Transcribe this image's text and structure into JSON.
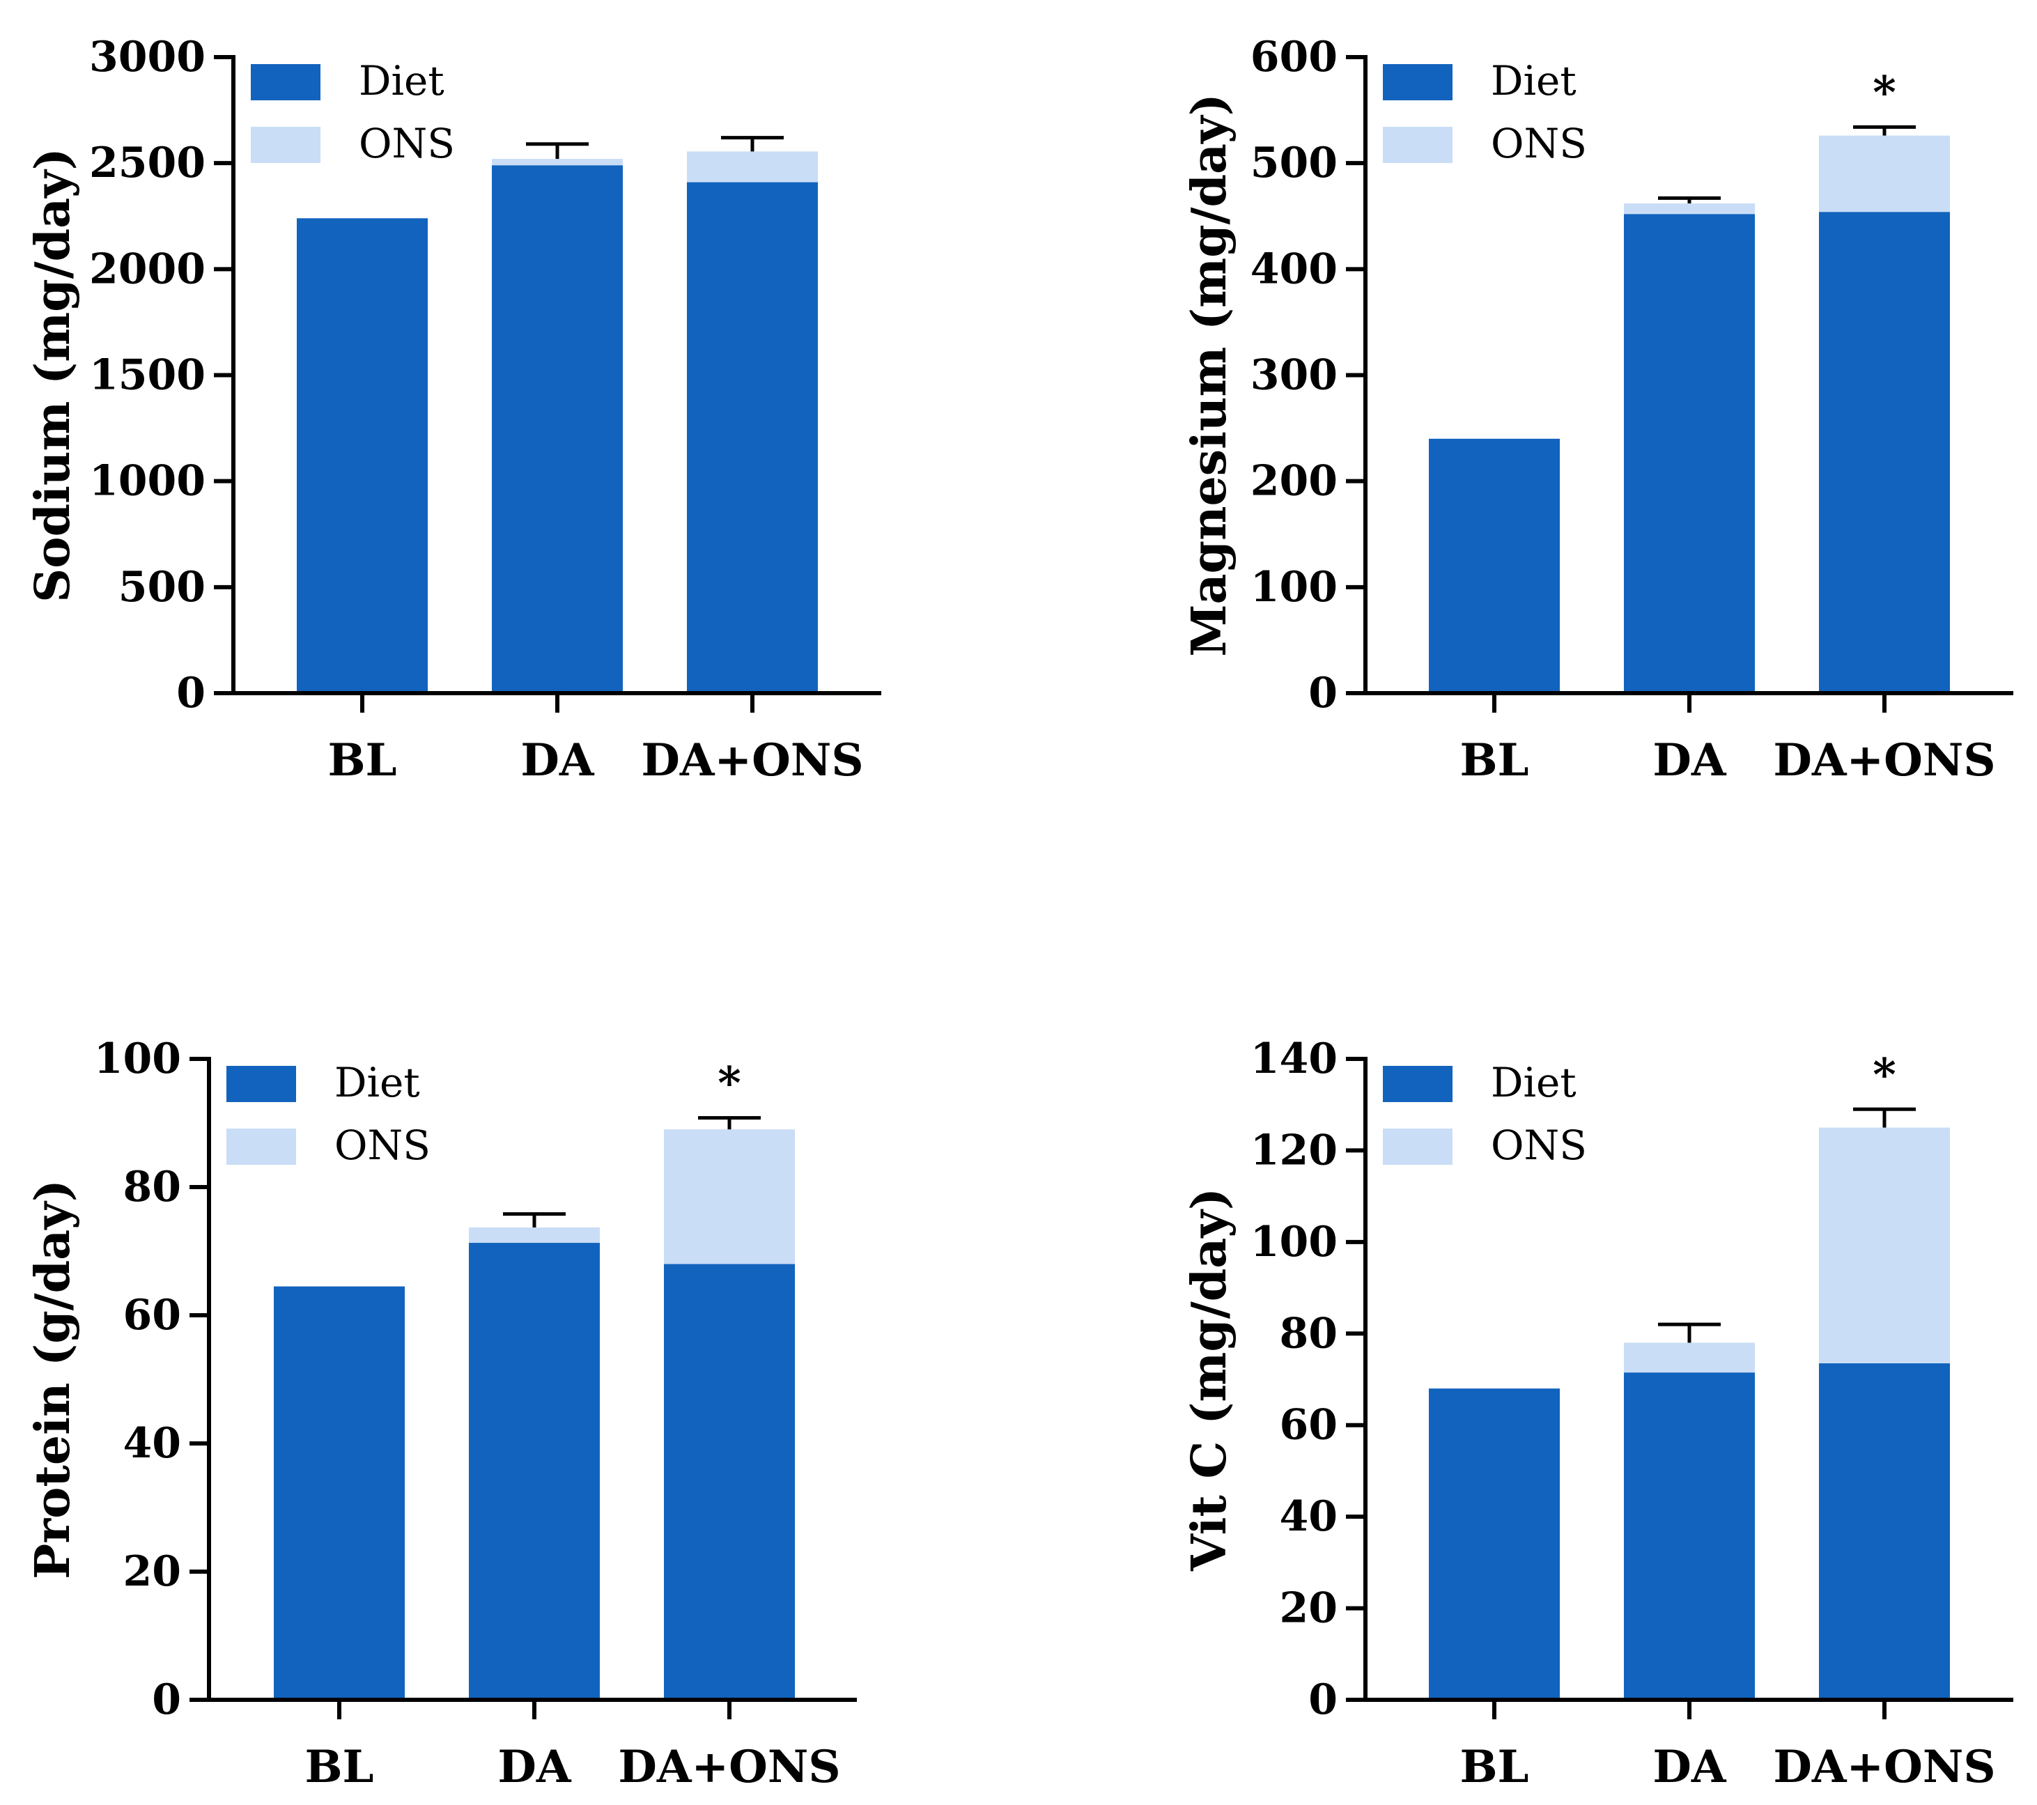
{
  "figure": {
    "colors": {
      "diet": "#1263bd",
      "ons": "#c9ddf6",
      "axis": "#000000"
    },
    "legend": [
      "Diet",
      "ONS"
    ]
  },
  "chart_data": [
    {
      "id": "sodium",
      "type": "bar",
      "stacked": true,
      "categories": [
        "BL",
        "DA",
        "DA+ONS"
      ],
      "series": [
        {
          "name": "Diet",
          "values": [
            2240,
            2490,
            2410
          ]
        },
        {
          "name": "ONS",
          "values": [
            0,
            30,
            145
          ]
        }
      ],
      "error_bar_tops": [
        null,
        2590,
        2620
      ],
      "significance": [
        "",
        "",
        ""
      ],
      "ylabel": "Sodium (mg/day)",
      "ylim": [
        0,
        3000
      ],
      "yticks": [
        0,
        500,
        1000,
        1500,
        2000,
        2500,
        3000
      ],
      "legend": "top-left"
    },
    {
      "id": "magnesium",
      "type": "bar",
      "stacked": true,
      "categories": [
        "BL",
        "DA",
        "DA+ONS"
      ],
      "series": [
        {
          "name": "Diet",
          "values": [
            240,
            452,
            454
          ]
        },
        {
          "name": "ONS",
          "values": [
            0,
            10,
            72
          ]
        }
      ],
      "error_bar_tops": [
        null,
        467,
        534
      ],
      "significance": [
        "",
        "",
        "*"
      ],
      "ylabel": "Magnesium (mg/day)",
      "ylim": [
        0,
        600
      ],
      "yticks": [
        0,
        100,
        200,
        300,
        400,
        500,
        600
      ],
      "legend": "top-left"
    },
    {
      "id": "protein",
      "type": "bar",
      "stacked": true,
      "categories": [
        "BL",
        "DA",
        "DA+ONS"
      ],
      "series": [
        {
          "name": "Diet",
          "values": [
            64.5,
            71.3,
            68
          ]
        },
        {
          "name": "ONS",
          "values": [
            0,
            2.4,
            21
          ]
        }
      ],
      "error_bar_tops": [
        null,
        75.8,
        90.8
      ],
      "significance": [
        "",
        "",
        "*"
      ],
      "ylabel": "Protein (g/day)",
      "ylim": [
        0,
        100
      ],
      "yticks": [
        0,
        20,
        40,
        60,
        80,
        100
      ],
      "legend": "top-left"
    },
    {
      "id": "vitc",
      "type": "bar",
      "stacked": true,
      "categories": [
        "BL",
        "DA",
        "DA+ONS"
      ],
      "series": [
        {
          "name": "Diet",
          "values": [
            68,
            71.5,
            73.5
          ]
        },
        {
          "name": "ONS",
          "values": [
            0,
            6.5,
            51.5
          ]
        }
      ],
      "error_bar_tops": [
        null,
        82,
        129
      ],
      "significance": [
        "",
        "",
        "*"
      ],
      "ylabel": "Vit C (mg/day)",
      "ylim": [
        0,
        140
      ],
      "yticks": [
        0,
        20,
        40,
        60,
        80,
        100,
        120,
        140
      ],
      "legend": "top-left"
    }
  ]
}
